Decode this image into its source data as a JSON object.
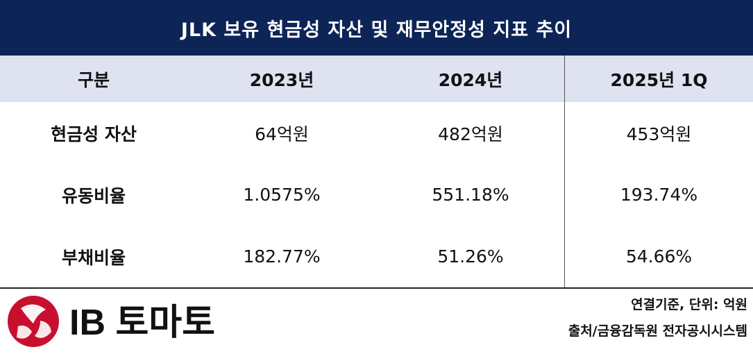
{
  "title": "JLK 보유 현금성 자산 및 재무안정성 지표 추이",
  "table": {
    "headers": [
      "구분",
      "2023년",
      "2024년",
      "2025년 1Q"
    ],
    "rows": [
      {
        "label": "현금성 자산",
        "values": [
          "64억원",
          "482억원",
          "453억원"
        ]
      },
      {
        "label": "유동비율",
        "values": [
          "1.0575%",
          "551.18%",
          "193.74%"
        ]
      },
      {
        "label": "부채비율",
        "values": [
          "182.77%",
          "51.26%",
          "54.66%"
        ]
      }
    ]
  },
  "notes": {
    "basis": "연결기준, 단위: 억원",
    "source": "출처/금융감독원 전자공시시스템"
  },
  "logo": {
    "text": "IB 토마토",
    "icon": "ib-tomato-logo-icon",
    "brand_color": "#c8102e"
  },
  "colors": {
    "title_bg": "#0d2457",
    "header_bg": "#dee2f1"
  }
}
